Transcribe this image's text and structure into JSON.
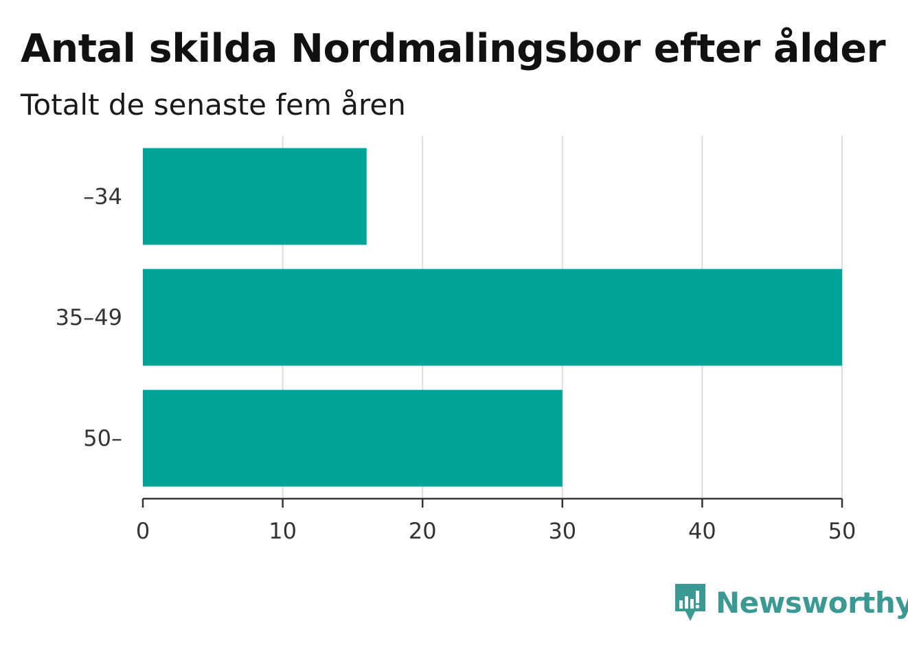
{
  "header": {
    "title": "Antal skilda Nordmalingsbor efter ålder",
    "subtitle": "Totalt de senaste fem åren"
  },
  "chart_data": {
    "type": "bar",
    "orientation": "horizontal",
    "categories": [
      "–34",
      "35–49",
      "50–"
    ],
    "values": [
      16,
      50,
      30
    ],
    "xlim": [
      0,
      50
    ],
    "xticks": [
      0,
      10,
      20,
      30,
      40,
      50
    ],
    "grid": true,
    "bar_color": "#00A398",
    "title": "Antal skilda Nordmalingsbor efter ålder",
    "subtitle": "Totalt de senaste fem åren",
    "xlabel": "",
    "ylabel": ""
  },
  "branding": {
    "logo_text": "Newsworthy",
    "logo_icon": "bar-chart-speech-bubble-icon",
    "logo_color": "#3A9A93"
  },
  "colors": {
    "grid": "#dddddd",
    "axis": "#333333",
    "text": "#111111"
  }
}
